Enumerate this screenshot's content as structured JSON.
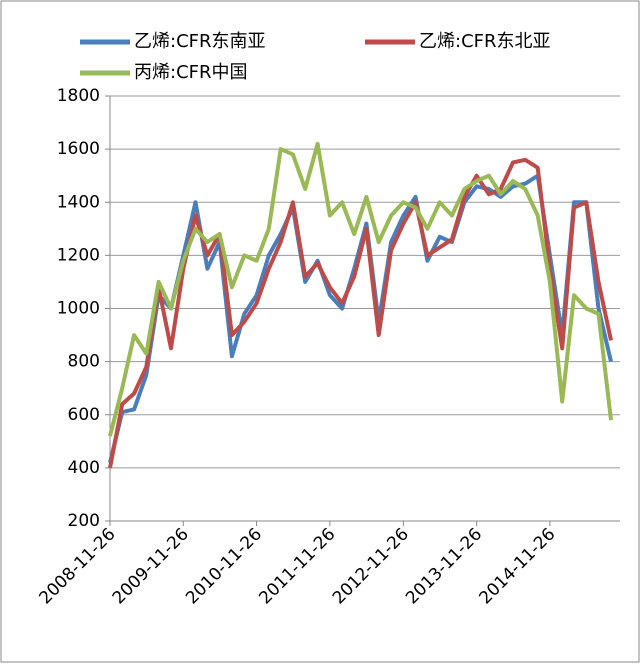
{
  "chart_data": {
    "type": "line",
    "x": [
      "2008-11-26",
      "2009-01-26",
      "2009-03-26",
      "2009-05-26",
      "2009-07-26",
      "2009-09-26",
      "2009-11-26",
      "2010-01-26",
      "2010-03-26",
      "2010-05-26",
      "2010-07-26",
      "2010-09-26",
      "2010-11-26",
      "2011-01-26",
      "2011-03-26",
      "2011-05-26",
      "2011-07-26",
      "2011-09-26",
      "2011-11-26",
      "2012-01-26",
      "2012-03-26",
      "2012-05-26",
      "2012-07-26",
      "2012-09-26",
      "2012-11-26",
      "2013-01-26",
      "2013-03-26",
      "2013-05-26",
      "2013-07-26",
      "2013-09-26",
      "2013-11-26",
      "2014-01-26",
      "2014-03-26",
      "2014-05-26",
      "2014-07-26",
      "2014-09-26",
      "2014-11-26",
      "2015-01-26",
      "2015-03-26",
      "2015-05-26",
      "2015-07-26",
      "2015-09-26"
    ],
    "series": [
      {
        "name": "乙烯:CFR东南亚",
        "color": "#4a7ebb",
        "values": [
          420,
          610,
          620,
          750,
          1050,
          1000,
          1200,
          1400,
          1150,
          1250,
          820,
          980,
          1050,
          1200,
          1280,
          1380,
          1100,
          1180,
          1050,
          1000,
          1150,
          1320,
          950,
          1250,
          1350,
          1420,
          1180,
          1270,
          1250,
          1400,
          1460,
          1450,
          1420,
          1460,
          1470,
          1500,
          1200,
          900,
          1400,
          1400,
          1000,
          800
        ]
      },
      {
        "name": "乙烯:CFR东北亚",
        "color": "#be4b48",
        "values": [
          400,
          640,
          680,
          780,
          1080,
          850,
          1150,
          1350,
          1200,
          1280,
          900,
          950,
          1020,
          1150,
          1250,
          1400,
          1120,
          1170,
          1080,
          1020,
          1120,
          1300,
          900,
          1220,
          1320,
          1400,
          1200,
          1230,
          1260,
          1420,
          1500,
          1430,
          1450,
          1550,
          1560,
          1530,
          1150,
          850,
          1380,
          1400,
          1100,
          880
        ]
      },
      {
        "name": "丙烯:CFR中国",
        "color": "#98b954",
        "values": [
          520,
          700,
          900,
          830,
          1100,
          1000,
          1180,
          1300,
          1250,
          1280,
          1080,
          1200,
          1180,
          1300,
          1600,
          1580,
          1450,
          1620,
          1350,
          1400,
          1280,
          1420,
          1250,
          1350,
          1400,
          1380,
          1300,
          1400,
          1350,
          1450,
          1480,
          1500,
          1430,
          1480,
          1450,
          1350,
          1100,
          650,
          1050,
          1000,
          980,
          580
        ]
      }
    ],
    "xlim": [
      "2008-11-26",
      "2015-11-10"
    ],
    "xticks": [
      "2008-11-26",
      "2009-11-26",
      "2010-11-26",
      "2011-11-26",
      "2012-11-26",
      "2013-11-26",
      "2014-11-26"
    ],
    "ylim": [
      200,
      1800
    ],
    "yticks": [
      200,
      400,
      600,
      800,
      1000,
      1200,
      1400,
      1600,
      1800
    ],
    "grid": true
  }
}
